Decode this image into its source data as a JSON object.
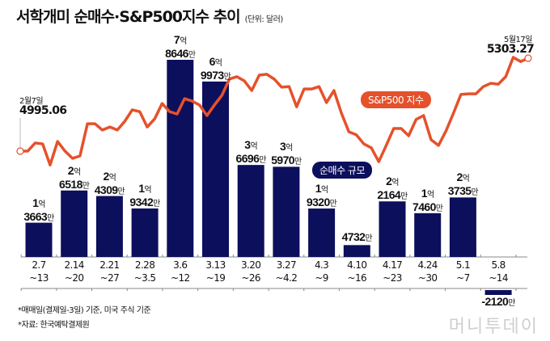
{
  "title": "서학개미 순매수·S&P500지수 추이",
  "unit": "(단위: 달러)",
  "footnotes": [
    "*매매일(결제일-3일) 기준, 미국 주식 기준",
    "*자료: 한국예탁결제원"
  ],
  "logo": "MT 머니투데이",
  "colors": {
    "bar": "#0c0f5c",
    "line": "#e5512b"
  },
  "chart_data": [
    {
      "type": "bar",
      "name": "순매수 규모",
      "legend": "순매수 규모",
      "unit": "만원",
      "categories": [
        [
          "2.7",
          "~13"
        ],
        [
          "2.14",
          "~20"
        ],
        [
          "2.21",
          "~27"
        ],
        [
          "2.28",
          "~3.5"
        ],
        [
          "3.6",
          "~12"
        ],
        [
          "3.13",
          "~19"
        ],
        [
          "3.20",
          "~26"
        ],
        [
          "3.27",
          "~4.2"
        ],
        [
          "4.3",
          "~9"
        ],
        [
          "4.10",
          "~16"
        ],
        [
          "4.17",
          "~23"
        ],
        [
          "4.24",
          "~30"
        ],
        [
          "5.1",
          "~7"
        ],
        [
          "5.8",
          "~14"
        ]
      ],
      "values": [
        13663,
        26518,
        24309,
        19342,
        78646,
        69973,
        36696,
        35970,
        19320,
        4732,
        22164,
        17460,
        23735,
        -2120
      ],
      "labels": [
        [
          "1억",
          "3663만"
        ],
        [
          "2억",
          "6518만"
        ],
        [
          "2억",
          "4309만"
        ],
        [
          "1억",
          "9342만"
        ],
        [
          "7억",
          "8646만"
        ],
        [
          "6억",
          "9973만"
        ],
        [
          "3억",
          "6696만"
        ],
        [
          "3억",
          "5970만"
        ],
        [
          "1억",
          "9320만"
        ],
        [
          "",
          "4732만"
        ],
        [
          "2억",
          "2164만"
        ],
        [
          "1억",
          "7460만"
        ],
        [
          "2억",
          "3735만"
        ],
        [
          "",
          "-2120만"
        ]
      ]
    },
    {
      "type": "line",
      "name": "S&P500 지수",
      "legend": "S&P500 지수",
      "start": {
        "date": "2월7일",
        "value": "4995.06"
      },
      "end": {
        "date": "5월17일",
        "value": "5303.27"
      },
      "values": [
        4995.06,
        4995,
        5022,
        5019,
        4949,
        5027,
        4995,
        4971,
        4979,
        5086,
        5086,
        5065,
        5075,
        5065,
        5094,
        5132,
        5126,
        5075,
        5102,
        5153,
        5126,
        5118,
        5169,
        5161,
        5148,
        5113,
        5148,
        5180,
        5234,
        5242,
        5228,
        5196,
        5247,
        5250,
        5234,
        5207,
        5209,
        5142,
        5201,
        5201,
        5209,
        5156,
        5196,
        5121,
        5059,
        5049,
        5019,
        5006,
        4960,
        5014,
        5070,
        5070,
        5046,
        5100,
        5113,
        5033,
        5014,
        5062,
        5121,
        5183,
        5185,
        5185,
        5209,
        5220,
        5217,
        5242,
        5306,
        5292,
        5303.27
      ]
    }
  ]
}
